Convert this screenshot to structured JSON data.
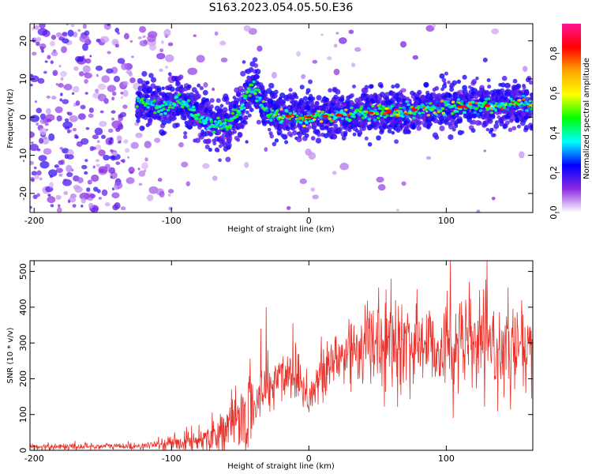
{
  "figure": {
    "title": "S163.2023.054.05.50.E36"
  },
  "chart_data": [
    {
      "type": "heatmap",
      "xlabel": "Height of straight line (km)",
      "ylabel": "Frequency (Hz)",
      "xlim": [
        -203,
        163
      ],
      "ylim": [
        -25,
        24.5
      ],
      "x_ticks": [
        -200,
        -100,
        0,
        100
      ],
      "y_ticks": [
        20,
        10,
        0,
        -10,
        -20
      ],
      "x_tick_labels": [
        "-200",
        "-100",
        "0",
        "100"
      ],
      "y_tick_labels": [
        "20",
        "10",
        "0",
        "-10",
        "-20"
      ],
      "colorbar": {
        "label": "Normalized spectral amplitude",
        "range": [
          0,
          0.95
        ],
        "ticks": [
          0.0,
          0.2,
          0.4,
          0.6,
          0.8
        ],
        "tick_labels": [
          "0.0",
          "0.2",
          "0.4",
          "0.6",
          "0.8"
        ],
        "colors": [
          "#ffffff",
          "#8a2be2",
          "#0000ff",
          "#00ffff",
          "#00ff00",
          "#ffff00",
          "#ffa500",
          "#ff0000",
          "#ff1493"
        ]
      },
      "ridge": {
        "description_points_x": [
          -125,
          -110,
          -100,
          -95,
          -85,
          -75,
          -65,
          -58,
          -50,
          -45,
          -40,
          -35,
          -30,
          -20,
          -10,
          0,
          20,
          40,
          60,
          80,
          100,
          120,
          140,
          163
        ],
        "description_points_y": [
          4,
          3,
          3,
          5,
          1.5,
          -1,
          -2,
          -1.5,
          2,
          6,
          8,
          4,
          1,
          0.5,
          0,
          0,
          0.5,
          1,
          1.5,
          2,
          2.5,
          3,
          3,
          3
        ]
      },
      "grid": false
    },
    {
      "type": "line",
      "xlabel": "Height of straight line (km)",
      "ylabel": "SNR (10 * v/v)",
      "xlim": [
        -203,
        163
      ],
      "ylim": [
        0,
        530
      ],
      "x_ticks": [
        -200,
        -100,
        0,
        100
      ],
      "y_ticks": [
        0,
        100,
        200,
        300,
        400,
        500
      ],
      "x_tick_labels": [
        "-200",
        "-100",
        "0",
        "100"
      ],
      "y_tick_labels": [
        "0",
        "100",
        "200",
        "300",
        "400",
        "500"
      ],
      "color": "#e8312a",
      "trend_x": [
        -203,
        -120,
        -100,
        -80,
        -60,
        -45,
        -35,
        -28,
        -20,
        -10,
        0,
        10,
        20,
        30,
        40,
        60,
        80,
        100,
        120,
        140,
        163
      ],
      "trend_y": [
        10,
        12,
        20,
        30,
        60,
        100,
        150,
        180,
        210,
        230,
        150,
        210,
        250,
        280,
        300,
        290,
        300,
        290,
        300,
        280,
        270
      ],
      "spikes": [
        {
          "x": -35,
          "y": 340
        },
        {
          "x": -31,
          "y": 400
        },
        {
          "x": -30,
          "y": 280
        },
        {
          "x": 63,
          "y": 420
        },
        {
          "x": 78,
          "y": 410
        },
        {
          "x": 103,
          "y": 530
        },
        {
          "x": 105,
          "y": 90
        },
        {
          "x": 110,
          "y": 410
        },
        {
          "x": 155,
          "y": 420
        },
        {
          "x": 158,
          "y": 160
        }
      ],
      "grid": false
    }
  ]
}
